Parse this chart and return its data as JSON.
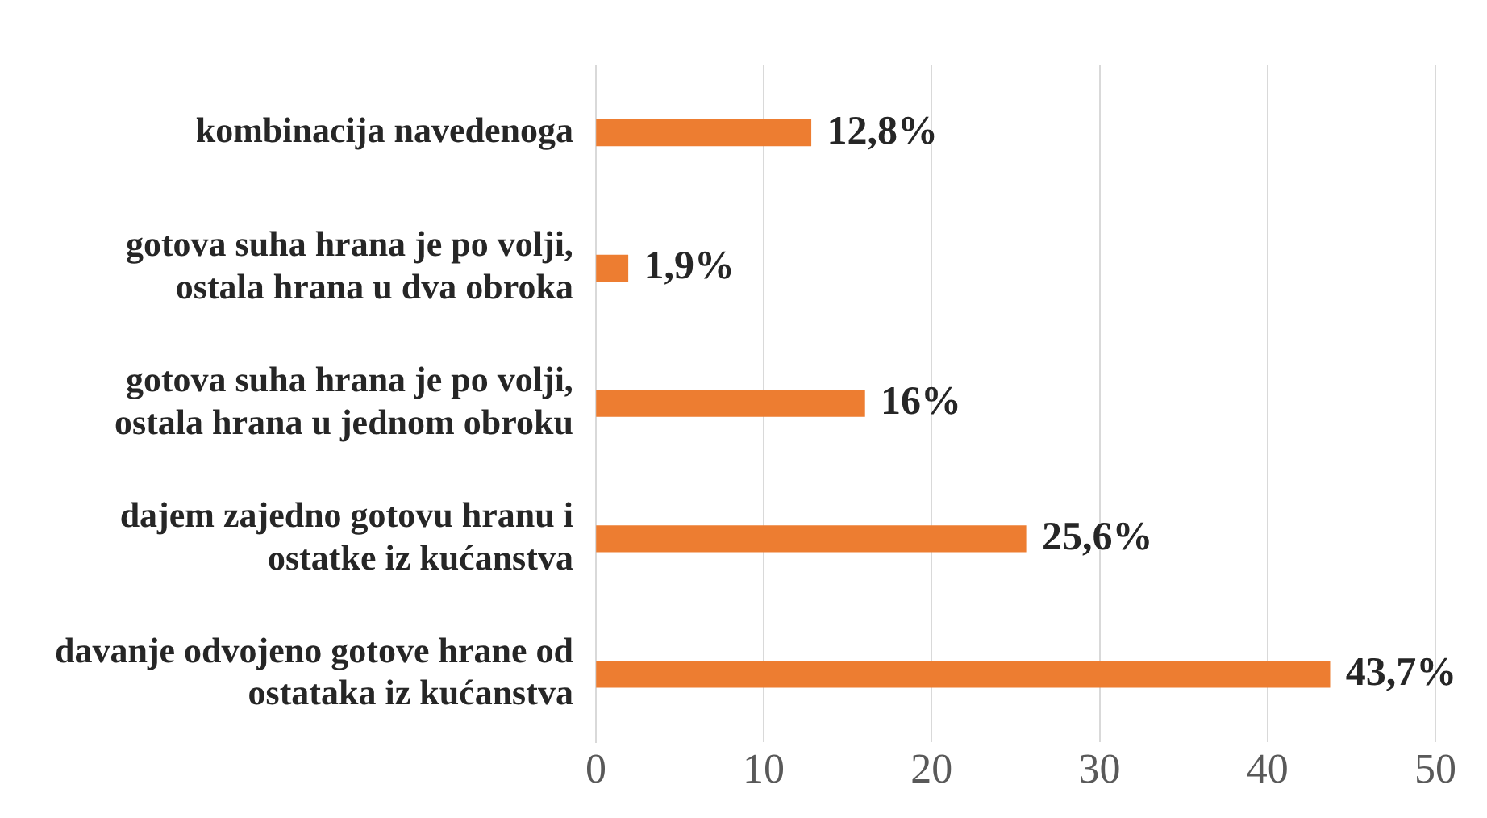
{
  "chart_data": {
    "type": "bar",
    "orientation": "horizontal",
    "categories": [
      "kombinacija navedenoga",
      "gotova suha hrana je po volji, ostala hrana u dva obroka",
      "gotova suha hrana je po volji, ostala hrana u jednom obroku",
      "dajem zajedno gotovu hranu i ostatke iz kućanstva",
      "davanje odvojeno gotove hrane od ostataka iz kućanstva"
    ],
    "values": [
      12.8,
      1.9,
      16,
      25.6,
      43.7
    ],
    "value_labels": [
      "12,8%",
      "1,9%",
      "16%",
      "25,6%",
      "43,7%"
    ],
    "color": "#ed7d31",
    "xlim": [
      0,
      50
    ],
    "xticks": [
      0,
      10,
      20,
      30,
      40,
      50
    ],
    "grid": "x"
  }
}
